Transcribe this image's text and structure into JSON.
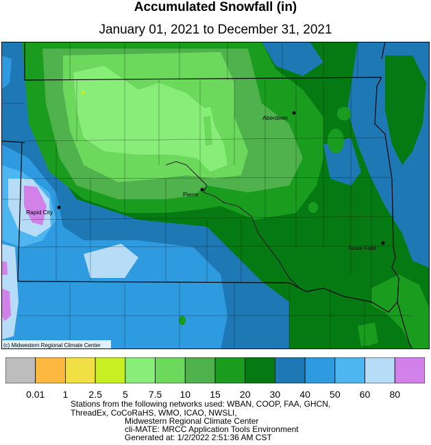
{
  "title": "Accumulated Snowfall (in)",
  "subtitle": "January 01, 2021 to December 31, 2021",
  "map": {
    "credit": "(c) Midwestern Regional Climate Center",
    "cities": [
      {
        "name": "Aberdeen"
      },
      {
        "name": "Pierre"
      },
      {
        "name": "Rapid City"
      },
      {
        "name": "Sioux Falls"
      }
    ]
  },
  "legend": {
    "colors": [
      "#bdbdbd",
      "#fdb840",
      "#f1e043",
      "#c8ef22",
      "#88ed79",
      "#6cd85c",
      "#50b24c",
      "#1a9c1e",
      "#067a12",
      "#1e78b4",
      "#2e9be0",
      "#4db5f0",
      "#b7dcf7",
      "#d181e8"
    ],
    "ticks": [
      "0.01",
      "1",
      "2.5",
      "5",
      "7.5",
      "10",
      "15",
      "20",
      "30",
      "40",
      "50",
      "60",
      "80"
    ]
  },
  "footer": {
    "line1": "Stations from the following networks used: WBAN, COOP, FAA, GHCN,",
    "line2": "ThreadEx, CoCoRaHS, WMO, ICAO, NWSLI,",
    "line3": "Midwestern Regional Climate Center",
    "line4": "cli-MATE: MRCC Application Tools Environment",
    "line5": "Generated at: 1/2/2022 2:51:36 AM CST"
  }
}
